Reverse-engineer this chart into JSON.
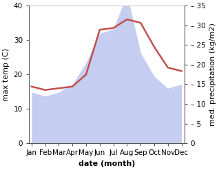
{
  "months": [
    "Jan",
    "Feb",
    "Mar",
    "Apr",
    "May",
    "Jun",
    "Jul",
    "Aug",
    "Sep",
    "Oct",
    "Nov",
    "Dec"
  ],
  "month_indices": [
    0,
    1,
    2,
    3,
    4,
    5,
    6,
    7,
    8,
    9,
    10,
    11
  ],
  "max_temp": [
    16.5,
    15.5,
    16.0,
    16.5,
    20.0,
    33.0,
    33.5,
    36.0,
    35.0,
    28.0,
    22.0,
    21.0
  ],
  "precipitation": [
    13.0,
    12.0,
    13.0,
    15.0,
    20.5,
    28.0,
    29.0,
    38.0,
    23.0,
    17.0,
    14.0,
    15.0
  ],
  "temp_color": "#c0504d",
  "precip_fill_color": "#c5cef0",
  "temp_ylim": [
    0,
    40
  ],
  "precip_ylim": [
    0,
    35
  ],
  "temp_yticks": [
    0,
    10,
    20,
    30,
    40
  ],
  "precip_yticks": [
    0,
    5,
    10,
    15,
    20,
    25,
    30,
    35
  ],
  "ylabel_left": "max temp (C)",
  "ylabel_right": "med. precipitation (kg/m2)",
  "xlabel": "date (month)",
  "background_color": "#ffffff",
  "line_width": 1.8,
  "xlabel_fontsize": 8,
  "ylabel_fontsize": 8,
  "tick_fontsize": 7.5
}
